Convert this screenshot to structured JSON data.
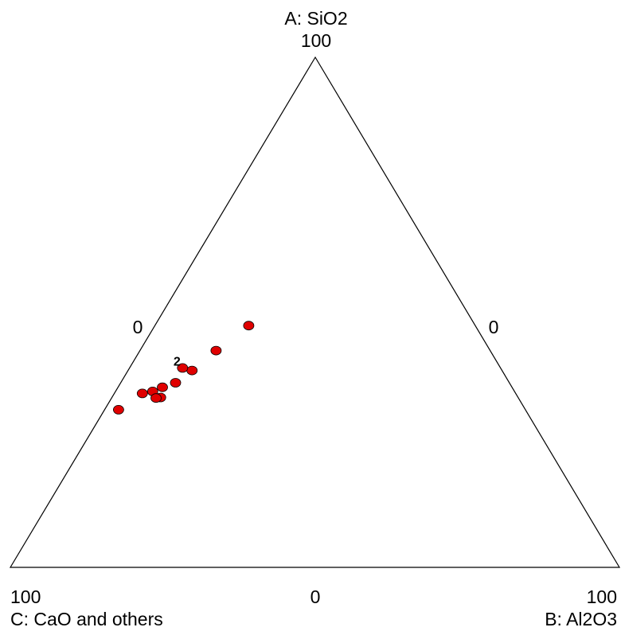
{
  "chart_data": {
    "type": "scatter",
    "subtype": "ternary",
    "axes": {
      "A": {
        "label": "A: SiO2",
        "max_label": "100",
        "min_label": "0"
      },
      "B": {
        "label": "B: Al2O3",
        "max_label": "100",
        "min_label": "0"
      },
      "C": {
        "label": "C: CaO and others",
        "max_label": "100",
        "min_label": "0"
      }
    },
    "grid": false,
    "marker_color": "#e00000",
    "points": [
      {
        "A": 47.4,
        "B": 15.4,
        "C": 37.2,
        "label": ""
      },
      {
        "A": 42.5,
        "B": 12.5,
        "C": 45.0,
        "label": ""
      },
      {
        "A": 38.6,
        "B": 10.5,
        "C": 50.9,
        "label": ""
      },
      {
        "A": 39.1,
        "B": 8.7,
        "C": 52.2,
        "label": "2"
      },
      {
        "A": 36.2,
        "B": 9.0,
        "C": 54.8,
        "label": ""
      },
      {
        "A": 35.3,
        "B": 7.3,
        "C": 57.4,
        "label": ""
      },
      {
        "A": 34.5,
        "B": 6.1,
        "C": 59.4,
        "label": ""
      },
      {
        "A": 34.1,
        "B": 4.6,
        "C": 61.3,
        "label": ""
      },
      {
        "A": 33.3,
        "B": 8.0,
        "C": 58.7,
        "label": ""
      },
      {
        "A": 33.2,
        "B": 7.3,
        "C": 59.5,
        "label": ""
      },
      {
        "A": 30.9,
        "B": 2.3,
        "C": 66.8,
        "label": ""
      }
    ]
  }
}
